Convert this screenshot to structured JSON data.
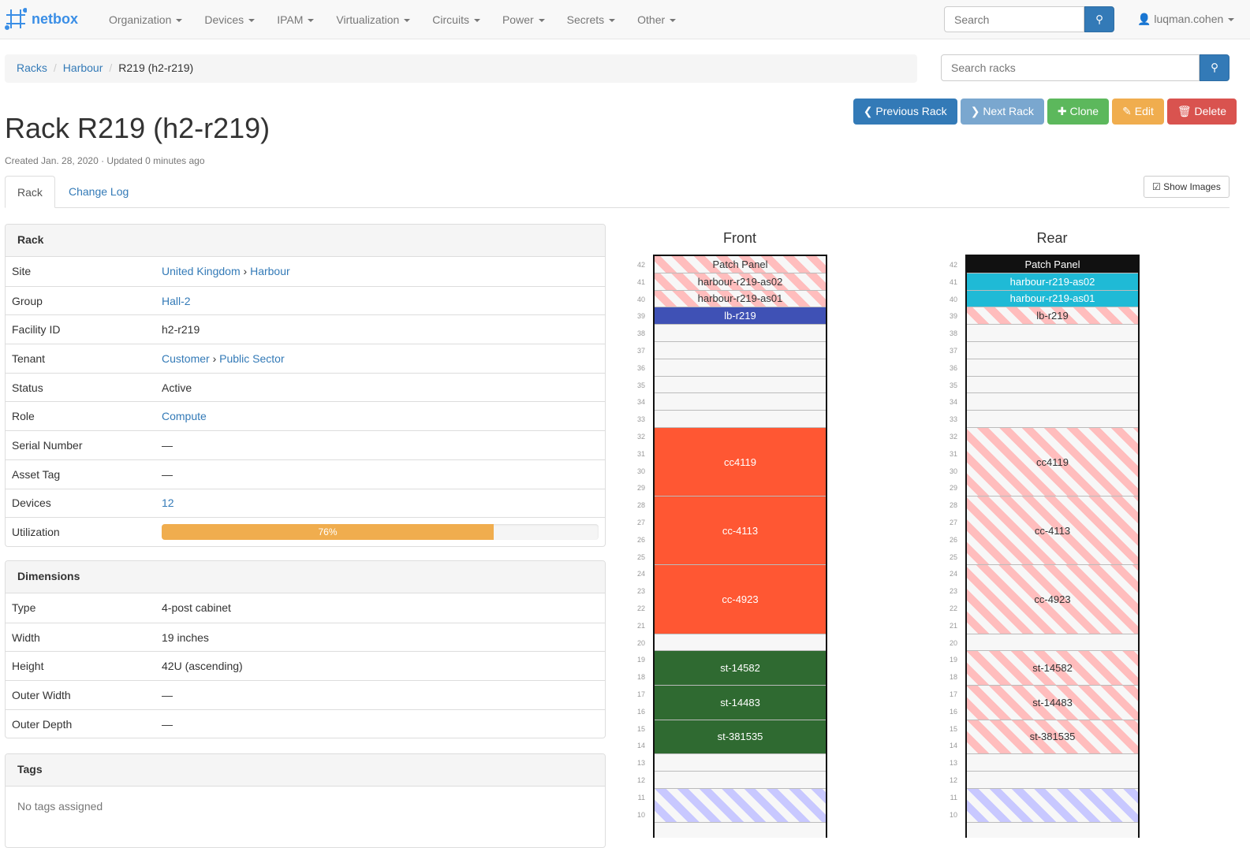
{
  "nav": {
    "brand": "netbox",
    "menu": [
      "Organization",
      "Devices",
      "IPAM",
      "Virtualization",
      "Circuits",
      "Power",
      "Secrets",
      "Other"
    ],
    "search_placeholder": "Search",
    "user": "luqman.cohen"
  },
  "breadcrumb": [
    "Racks",
    "Harbour",
    "R219 (h2-r219)"
  ],
  "rack_search_placeholder": "Search racks",
  "title": "Rack R219 (h2-r219)",
  "meta": "Created Jan. 28, 2020 · Updated 0 minutes ago",
  "buttons": [
    {
      "label": "Previous Rack",
      "icon": "chevron-left",
      "color": "#337ab7"
    },
    {
      "label": "Next Rack",
      "icon": "chevron-right",
      "color": "#7aa7cf"
    },
    {
      "label": "Clone",
      "icon": "plus",
      "color": "#5cb85c"
    },
    {
      "label": "Edit",
      "icon": "pencil",
      "color": "#f0ad4e"
    },
    {
      "label": "Delete",
      "icon": "trash",
      "color": "#d9534f"
    }
  ],
  "tabs": [
    "Rack",
    "Change Log"
  ],
  "show_images": "Show Images",
  "rack_panel": {
    "title": "Rack",
    "rows": [
      {
        "k": "Site",
        "v": [
          "United Kingdom",
          "Harbour"
        ],
        "link": true
      },
      {
        "k": "Group",
        "v": [
          "Hall-2"
        ],
        "link": true
      },
      {
        "k": "Facility ID",
        "v": [
          "h2-r219"
        ]
      },
      {
        "k": "Tenant",
        "v": [
          "Customer",
          "Public Sector"
        ],
        "link": true
      },
      {
        "k": "Status",
        "v": [
          "Active"
        ]
      },
      {
        "k": "Role",
        "v": [
          "Compute"
        ],
        "link": true
      },
      {
        "k": "Serial Number",
        "v": [
          "—"
        ]
      },
      {
        "k": "Asset Tag",
        "v": [
          "—"
        ]
      },
      {
        "k": "Devices",
        "v": [
          "12"
        ],
        "link": true
      }
    ],
    "utilization_label": "Utilization",
    "utilization": 76,
    "utilization_text": "76%"
  },
  "dimensions": {
    "title": "Dimensions",
    "rows": [
      {
        "k": "Type",
        "v": "4-post cabinet"
      },
      {
        "k": "Width",
        "v": "19 inches"
      },
      {
        "k": "Height",
        "v": "42U (ascending)"
      },
      {
        "k": "Outer Width",
        "v": "—"
      },
      {
        "k": "Outer Depth",
        "v": "—"
      }
    ]
  },
  "tags": {
    "title": "Tags",
    "empty": "No tags assigned"
  },
  "elevations": [
    {
      "title": "Front",
      "devices": [
        {
          "name": "Patch Panel",
          "top": 42,
          "h": 1,
          "style": "stripe"
        },
        {
          "name": "harbour-r219-as02",
          "top": 41,
          "h": 1,
          "style": "stripe"
        },
        {
          "name": "harbour-r219-as01",
          "top": 40,
          "h": 1,
          "style": "stripe"
        },
        {
          "name": "lb-r219",
          "top": 39,
          "h": 1,
          "color": "#3f51b5"
        },
        {
          "name": "cc4119",
          "top": 32,
          "h": 4,
          "color": "#ff5733"
        },
        {
          "name": "cc-4113",
          "top": 28,
          "h": 4,
          "color": "#ff5733"
        },
        {
          "name": "cc-4923",
          "top": 24,
          "h": 4,
          "color": "#ff5733"
        },
        {
          "name": "st-14582",
          "top": 19,
          "h": 2,
          "color": "#2f6a31"
        },
        {
          "name": "st-14483",
          "top": 17,
          "h": 2,
          "color": "#2f6a31"
        },
        {
          "name": "st-381535",
          "top": 15,
          "h": 2,
          "color": "#2f6a31"
        },
        {
          "name": "",
          "top": 11,
          "h": 2,
          "style": "rstripe"
        }
      ]
    },
    {
      "title": "Rear",
      "devices": [
        {
          "name": "Patch Panel",
          "top": 42,
          "h": 1,
          "color": "#111111"
        },
        {
          "name": "harbour-r219-as02",
          "top": 41,
          "h": 1,
          "color": "#1fbad6"
        },
        {
          "name": "harbour-r219-as01",
          "top": 40,
          "h": 1,
          "color": "#1fbad6"
        },
        {
          "name": "lb-r219",
          "top": 39,
          "h": 1,
          "style": "stripe"
        },
        {
          "name": "cc4119",
          "top": 32,
          "h": 4,
          "style": "stripe"
        },
        {
          "name": "cc-4113",
          "top": 28,
          "h": 4,
          "style": "stripe"
        },
        {
          "name": "cc-4923",
          "top": 24,
          "h": 4,
          "style": "stripe"
        },
        {
          "name": "st-14582",
          "top": 19,
          "h": 2,
          "style": "stripe"
        },
        {
          "name": "st-14483",
          "top": 17,
          "h": 2,
          "style": "stripe"
        },
        {
          "name": "st-381535",
          "top": 15,
          "h": 2,
          "style": "stripe"
        },
        {
          "name": "",
          "top": 11,
          "h": 2,
          "style": "rstripe"
        }
      ]
    }
  ]
}
